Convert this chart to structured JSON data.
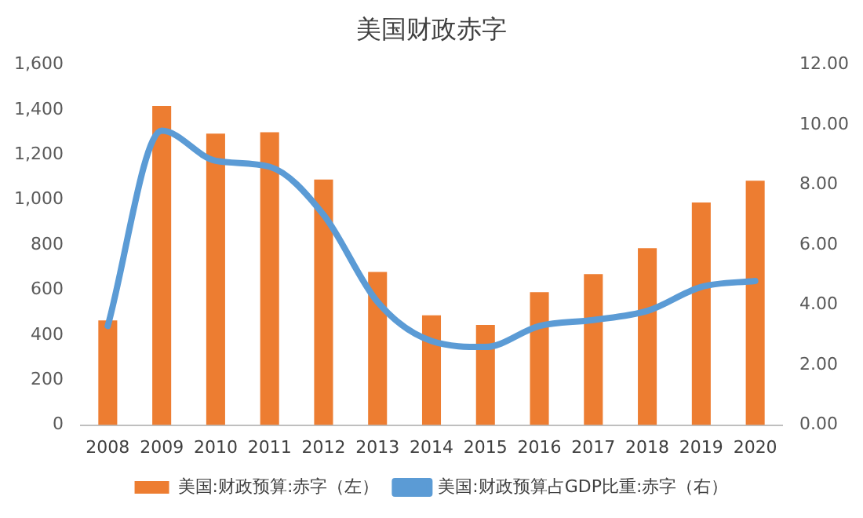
{
  "chart_data": {
    "type": "bar",
    "title": "美国财政赤字",
    "categories": [
      "2008",
      "2009",
      "2010",
      "2011",
      "2012",
      "2013",
      "2014",
      "2015",
      "2016",
      "2017",
      "2018",
      "2019",
      "2020"
    ],
    "series": [
      {
        "name": "美国:财政预算:赤字（左）",
        "color": "#ed7d31",
        "values": [
          465,
          1417,
          1294,
          1300,
          1090,
          680,
          487,
          445,
          590,
          670,
          785,
          988,
          1085
        ]
      },
      {
        "name": "美国:财政预算占GDP比重:赤字（右）",
        "type": "line",
        "axis": "y2",
        "color": "#5b9bd5",
        "values": [
          3.3,
          9.8,
          8.8,
          8.6,
          7.0,
          4.1,
          2.8,
          2.6,
          3.3,
          3.5,
          3.8,
          4.6,
          4.8
        ]
      }
    ],
    "ylim": [
      0,
      1600
    ],
    "yticks": [
      {
        "value": 0,
        "label": "0"
      },
      {
        "value": 200,
        "label": "200"
      },
      {
        "value": 400,
        "label": "400"
      },
      {
        "value": 600,
        "label": "600"
      },
      {
        "value": 800,
        "label": "800"
      },
      {
        "value": 1000,
        "label": "1,000"
      },
      {
        "value": 1200,
        "label": "1,200"
      },
      {
        "value": 1400,
        "label": "1,400"
      },
      {
        "value": 1600,
        "label": "1,600"
      }
    ],
    "y2lim": [
      0,
      12
    ],
    "y2ticks": [
      {
        "value": 0,
        "label": "0.00"
      },
      {
        "value": 2,
        "label": "2.00"
      },
      {
        "value": 4,
        "label": "4.00"
      },
      {
        "value": 6,
        "label": "6.00"
      },
      {
        "value": 8,
        "label": "8.00"
      },
      {
        "value": 10,
        "label": "10.00"
      },
      {
        "value": 12,
        "label": "12.00"
      }
    ],
    "legend": "bottom",
    "marker": "none"
  }
}
